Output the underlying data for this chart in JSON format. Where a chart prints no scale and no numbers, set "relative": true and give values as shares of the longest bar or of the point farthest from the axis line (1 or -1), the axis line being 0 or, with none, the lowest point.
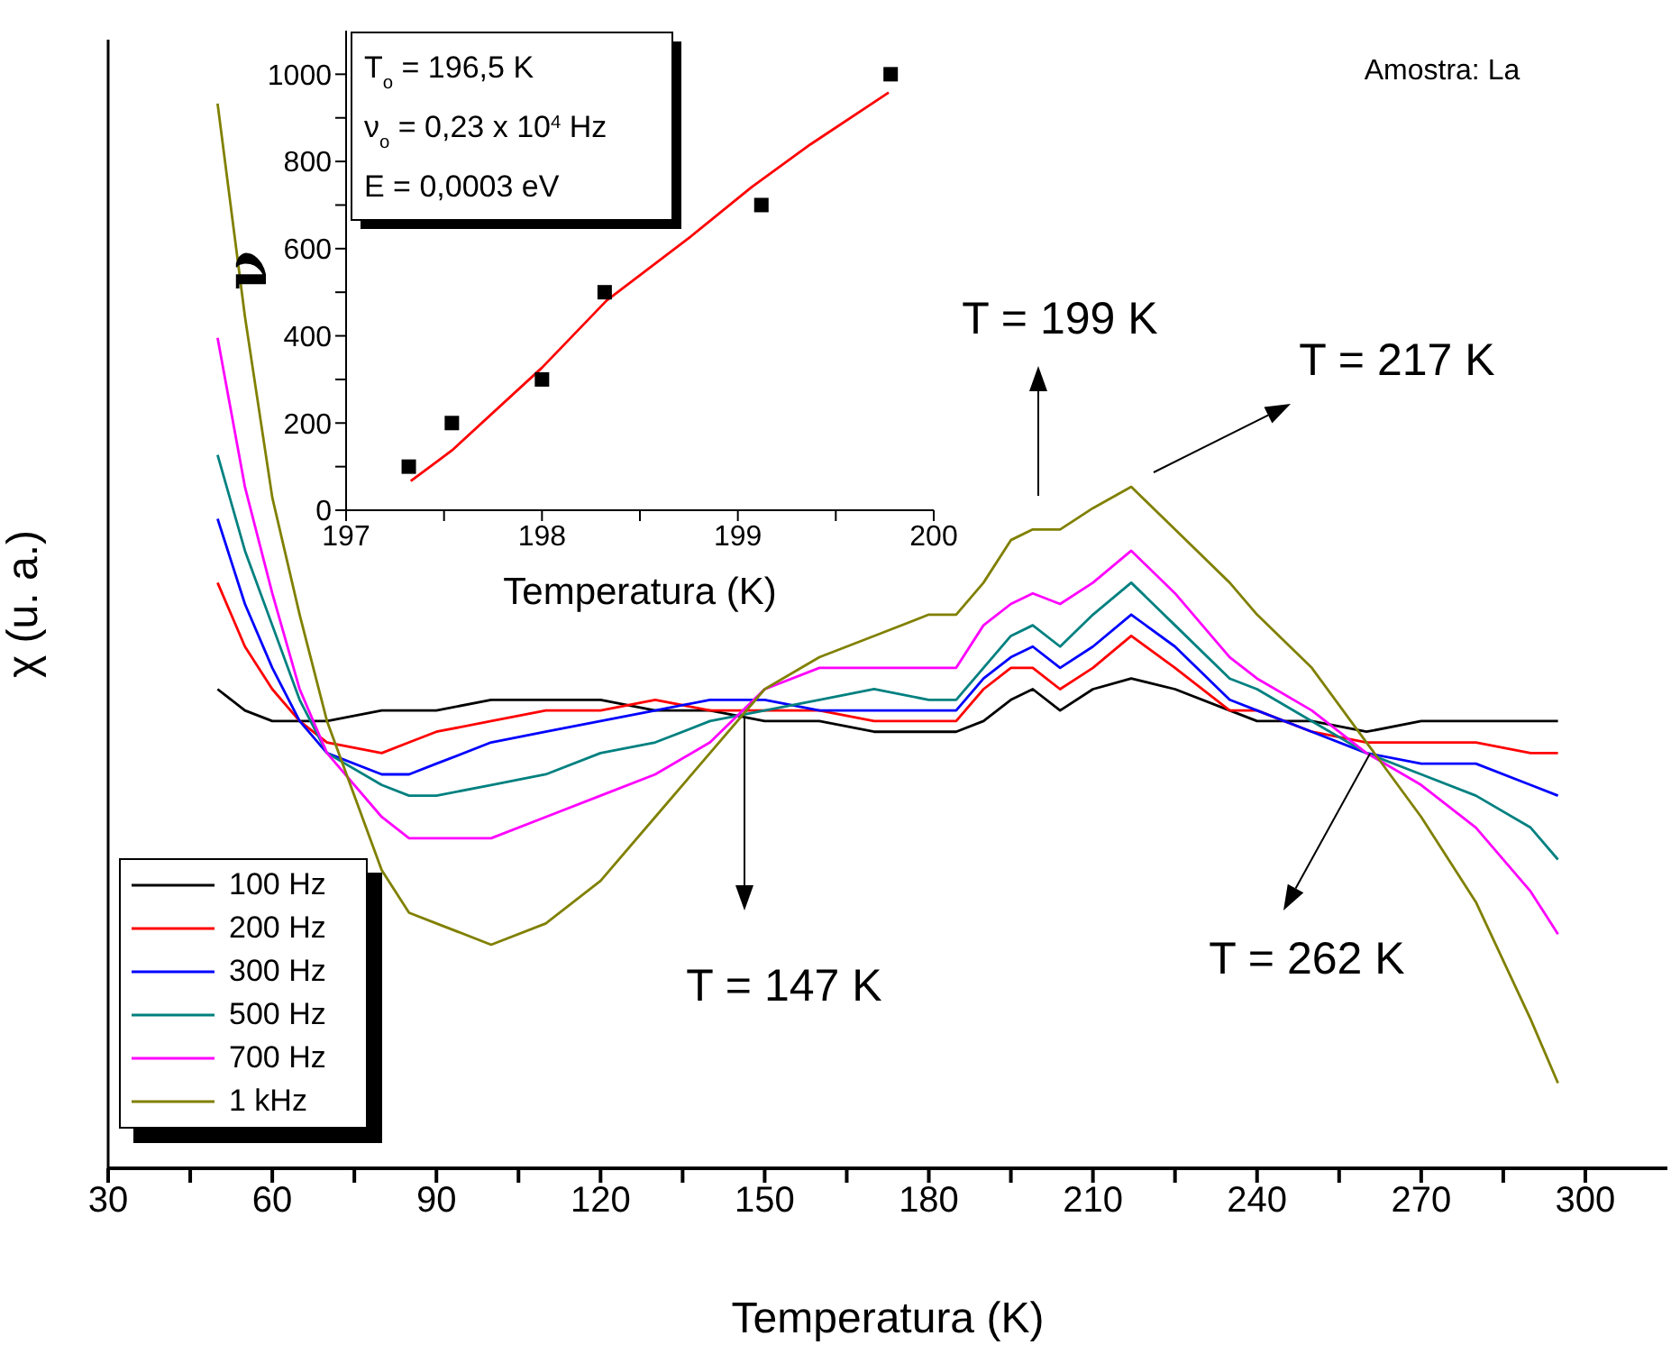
{
  "chart_data": [
    {
      "type": "line",
      "xlabel": "Temperatura (K)",
      "ylabel": "χ (u. a.)",
      "relative": true,
      "xlim": [
        30,
        315
      ],
      "xticks": [
        30,
        {
          "value": 45,
          "label": null
        },
        60,
        {
          "value": 75,
          "label": null
        },
        90,
        {
          "value": 105,
          "label": null
        },
        120,
        {
          "value": 135,
          "label": null
        },
        150,
        {
          "value": 165,
          "label": null
        },
        180,
        {
          "value": 195,
          "label": null
        },
        210,
        {
          "value": 225,
          "label": null
        },
        240,
        {
          "value": 255,
          "label": null
        },
        270,
        {
          "value": 285,
          "label": null
        },
        300
      ],
      "legend": "bottom left",
      "x": [
        50,
        55,
        60,
        65,
        70,
        80,
        85,
        90,
        100,
        110,
        120,
        130,
        140,
        150,
        160,
        170,
        180,
        185,
        190,
        195,
        199,
        204,
        210,
        217,
        225,
        235,
        240,
        250,
        260,
        270,
        280,
        290,
        295
      ],
      "series": [
        {
          "name": "100 Hz",
          "color": "#000000",
          "values": [
            0.45,
            0.43,
            0.42,
            0.42,
            0.42,
            0.43,
            0.43,
            0.43,
            0.44,
            0.44,
            0.44,
            0.43,
            0.43,
            0.42,
            0.42,
            0.41,
            0.41,
            0.41,
            0.42,
            0.44,
            0.45,
            0.43,
            0.45,
            0.46,
            0.45,
            0.43,
            0.42,
            0.42,
            0.41,
            0.42,
            0.42,
            0.42,
            0.42
          ]
        },
        {
          "name": "200 Hz",
          "color": "#ff0000",
          "values": [
            0.55,
            0.49,
            0.45,
            0.42,
            0.4,
            0.39,
            0.4,
            0.41,
            0.42,
            0.43,
            0.43,
            0.44,
            0.43,
            0.43,
            0.43,
            0.42,
            0.42,
            0.42,
            0.45,
            0.47,
            0.47,
            0.45,
            0.47,
            0.5,
            0.47,
            0.43,
            0.43,
            0.41,
            0.4,
            0.4,
            0.4,
            0.39,
            0.39
          ]
        },
        {
          "name": "300 Hz",
          "color": "#0000ff",
          "values": [
            0.61,
            0.53,
            0.47,
            0.42,
            0.39,
            0.37,
            0.37,
            0.38,
            0.4,
            0.41,
            0.42,
            0.43,
            0.44,
            0.44,
            0.43,
            0.43,
            0.43,
            0.43,
            0.46,
            0.48,
            0.49,
            0.47,
            0.49,
            0.52,
            0.49,
            0.44,
            0.43,
            0.41,
            0.39,
            0.38,
            0.38,
            0.36,
            0.35
          ]
        },
        {
          "name": "500 Hz",
          "color": "#008080",
          "values": [
            0.67,
            0.58,
            0.51,
            0.44,
            0.39,
            0.36,
            0.35,
            0.35,
            0.36,
            0.37,
            0.39,
            0.4,
            0.42,
            0.43,
            0.44,
            0.45,
            0.44,
            0.44,
            0.47,
            0.5,
            0.51,
            0.49,
            0.52,
            0.55,
            0.51,
            0.46,
            0.45,
            0.42,
            0.39,
            0.37,
            0.35,
            0.32,
            0.29
          ]
        },
        {
          "name": "700 Hz",
          "color": "#ff00ff",
          "values": [
            0.78,
            0.64,
            0.54,
            0.45,
            0.39,
            0.33,
            0.31,
            0.31,
            0.31,
            0.33,
            0.35,
            0.37,
            0.4,
            0.45,
            0.47,
            0.47,
            0.47,
            0.47,
            0.51,
            0.53,
            0.54,
            0.53,
            0.55,
            0.58,
            0.54,
            0.48,
            0.46,
            0.43,
            0.39,
            0.36,
            0.32,
            0.26,
            0.22
          ]
        },
        {
          "name": "1 kHz",
          "color": "#808000",
          "values": [
            1,
            0.8,
            0.63,
            0.52,
            0.42,
            0.28,
            0.24,
            0.23,
            0.21,
            0.23,
            0.27,
            0.33,
            0.39,
            0.45,
            0.48,
            0.5,
            0.52,
            0.52,
            0.55,
            0.59,
            0.6,
            0.6,
            0.62,
            0.64,
            0.6,
            0.55,
            0.52,
            0.47,
            0.4,
            0.33,
            0.25,
            0.14,
            0.08
          ]
        }
      ],
      "annotations": [
        "T = 199 K",
        "T = 217 K",
        "T = 147 K",
        "T = 262 K",
        "Amostra: La"
      ]
    },
    {
      "type": "scatter",
      "xlabel": "Temperatura (K)",
      "ylabel": "ν",
      "xlim": [
        197,
        200
      ],
      "xticks": [
        197,
        {
          "value": 197.5,
          "label": null
        },
        198,
        {
          "value": 198.5,
          "label": null
        },
        199,
        {
          "value": 199.5,
          "label": null
        },
        200
      ],
      "ylim": [
        0,
        1100
      ],
      "yticks": [
        0,
        {
          "value": 100,
          "label": null
        },
        200,
        {
          "value": 300,
          "label": null
        },
        400,
        {
          "value": 500,
          "label": null
        },
        600,
        {
          "value": 700,
          "label": null
        },
        800,
        {
          "value": 900,
          "label": null
        },
        1000
      ],
      "series": [
        {
          "type": "scatter",
          "marker": "square",
          "color": "#000000",
          "x": [
            197.32,
            197.54,
            198.0,
            198.32,
            199.12,
            199.78
          ],
          "values": [
            100,
            200,
            300,
            500,
            700,
            1000
          ]
        },
        {
          "type": "line",
          "marker": "none",
          "color": "#ff0000",
          "x": [
            197.33,
            197.54,
            198.0,
            198.33,
            198.76,
            199.07,
            199.37,
            199.77
          ],
          "values": [
            67,
            137,
            327,
            481,
            628,
            741,
            839,
            958
          ]
        }
      ],
      "annotations": [
        "T$_{o}$ = 196,5 K",
        "ν$_{o}$ = 0,23 x 10$^{4}$ Hz",
        "E = 0,0003 eV"
      ]
    }
  ]
}
